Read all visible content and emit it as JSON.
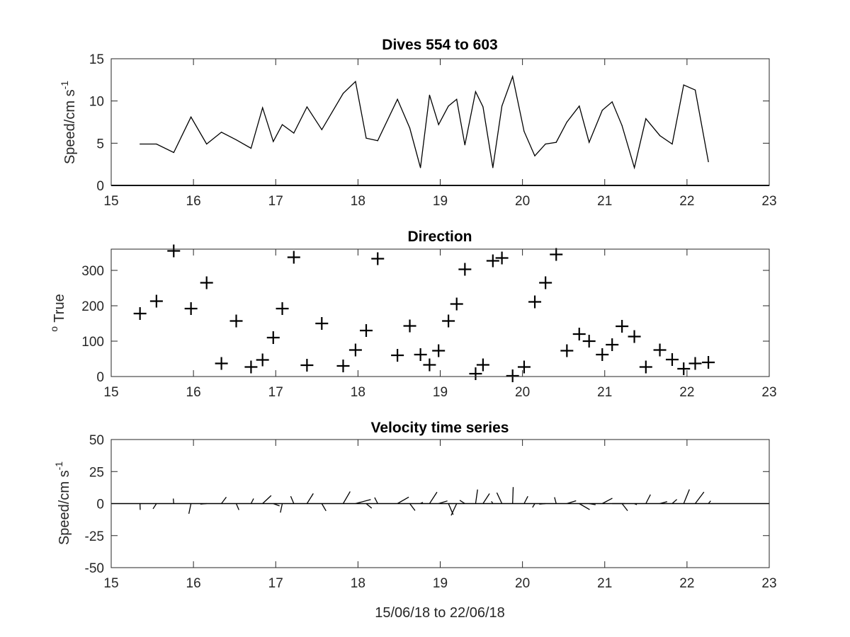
{
  "chart_data": [
    {
      "type": "line",
      "title": "Dives 554 to 603",
      "ylabel": "Speed/cm s",
      "ylabel_sup": "-1",
      "xlim": [
        15,
        23
      ],
      "ylim": [
        0,
        15
      ],
      "xticks": [
        15,
        16,
        17,
        18,
        19,
        20,
        21,
        22,
        23
      ],
      "yticks": [
        0,
        5,
        10,
        15
      ],
      "series": [
        {
          "x": [
            15.35,
            15.55,
            15.76,
            15.97,
            16.16,
            16.34,
            16.52,
            16.7,
            16.84,
            16.97,
            17.08,
            17.22,
            17.38,
            17.56,
            17.82,
            17.97,
            18.1,
            18.24,
            18.48,
            18.63,
            18.76,
            18.87,
            18.98,
            19.1,
            19.2,
            19.3,
            19.43,
            19.52,
            19.64,
            19.75,
            19.88,
            20.02,
            20.15,
            20.28,
            20.41,
            20.54,
            20.69,
            20.81,
            20.97,
            21.09,
            21.21,
            21.36,
            21.5,
            21.67,
            21.82,
            21.96,
            22.1,
            22.26
          ],
          "values": [
            4.9,
            4.9,
            3.9,
            8.1,
            4.9,
            6.3,
            5.4,
            4.4,
            9.2,
            5.2,
            7.2,
            6.2,
            9.3,
            6.6,
            10.9,
            12.3,
            5.6,
            5.3,
            10.2,
            6.8,
            2.1,
            10.7,
            7.2,
            9.4,
            10.2,
            4.8,
            11.1,
            9.3,
            2.1,
            9.4,
            12.9,
            6.4,
            3.5,
            4.9,
            5.1,
            7.5,
            9.4,
            5.1,
            8.9,
            9.9,
            7.1,
            2.1,
            7.9,
            5.9,
            4.9,
            11.9,
            11.3,
            2.8
          ]
        }
      ]
    },
    {
      "type": "scatter",
      "title": "Direction",
      "ylabel": "True",
      "ylabel_sup": "o",
      "xlim": [
        15,
        23
      ],
      "ylim": [
        0,
        360
      ],
      "xticks": [
        15,
        16,
        17,
        18,
        19,
        20,
        21,
        22,
        23
      ],
      "yticks": [
        0,
        100,
        200,
        300
      ],
      "marker": "+",
      "series": [
        {
          "x": [
            15.35,
            15.55,
            15.76,
            15.97,
            16.16,
            16.34,
            16.52,
            16.7,
            16.84,
            16.97,
            17.08,
            17.22,
            17.38,
            17.56,
            17.82,
            17.97,
            18.1,
            18.24,
            18.48,
            18.63,
            18.76,
            18.87,
            18.98,
            19.1,
            19.2,
            19.3,
            19.43,
            19.52,
            19.64,
            19.75,
            19.88,
            20.02,
            20.15,
            20.28,
            20.41,
            20.54,
            20.69,
            20.81,
            20.97,
            21.09,
            21.21,
            21.36,
            21.5,
            21.67,
            21.82,
            21.96,
            22.1,
            22.26
          ],
          "values": [
            178,
            213,
            355,
            192,
            265,
            37,
            157,
            27,
            47,
            110,
            192,
            337,
            32,
            150,
            30,
            75,
            130,
            333,
            60,
            143,
            62,
            33,
            73,
            157,
            205,
            303,
            8,
            33,
            327,
            335,
            2,
            27,
            211,
            265,
            345,
            73,
            120,
            100,
            62,
            90,
            142,
            113,
            27,
            75,
            48,
            22,
            37,
            40
          ]
        }
      ]
    },
    {
      "type": "quiver",
      "title": "Velocity time series",
      "ylabel": "Speed/cm s",
      "ylabel_sup": "-1",
      "xlabel": "15/06/18 to 22/06/18",
      "xlim": [
        15,
        23
      ],
      "ylim": [
        -50,
        50
      ],
      "xticks": [
        15,
        16,
        17,
        18,
        19,
        20,
        21,
        22,
        23
      ],
      "yticks": [
        -50,
        -25,
        0,
        25,
        50
      ]
    }
  ]
}
